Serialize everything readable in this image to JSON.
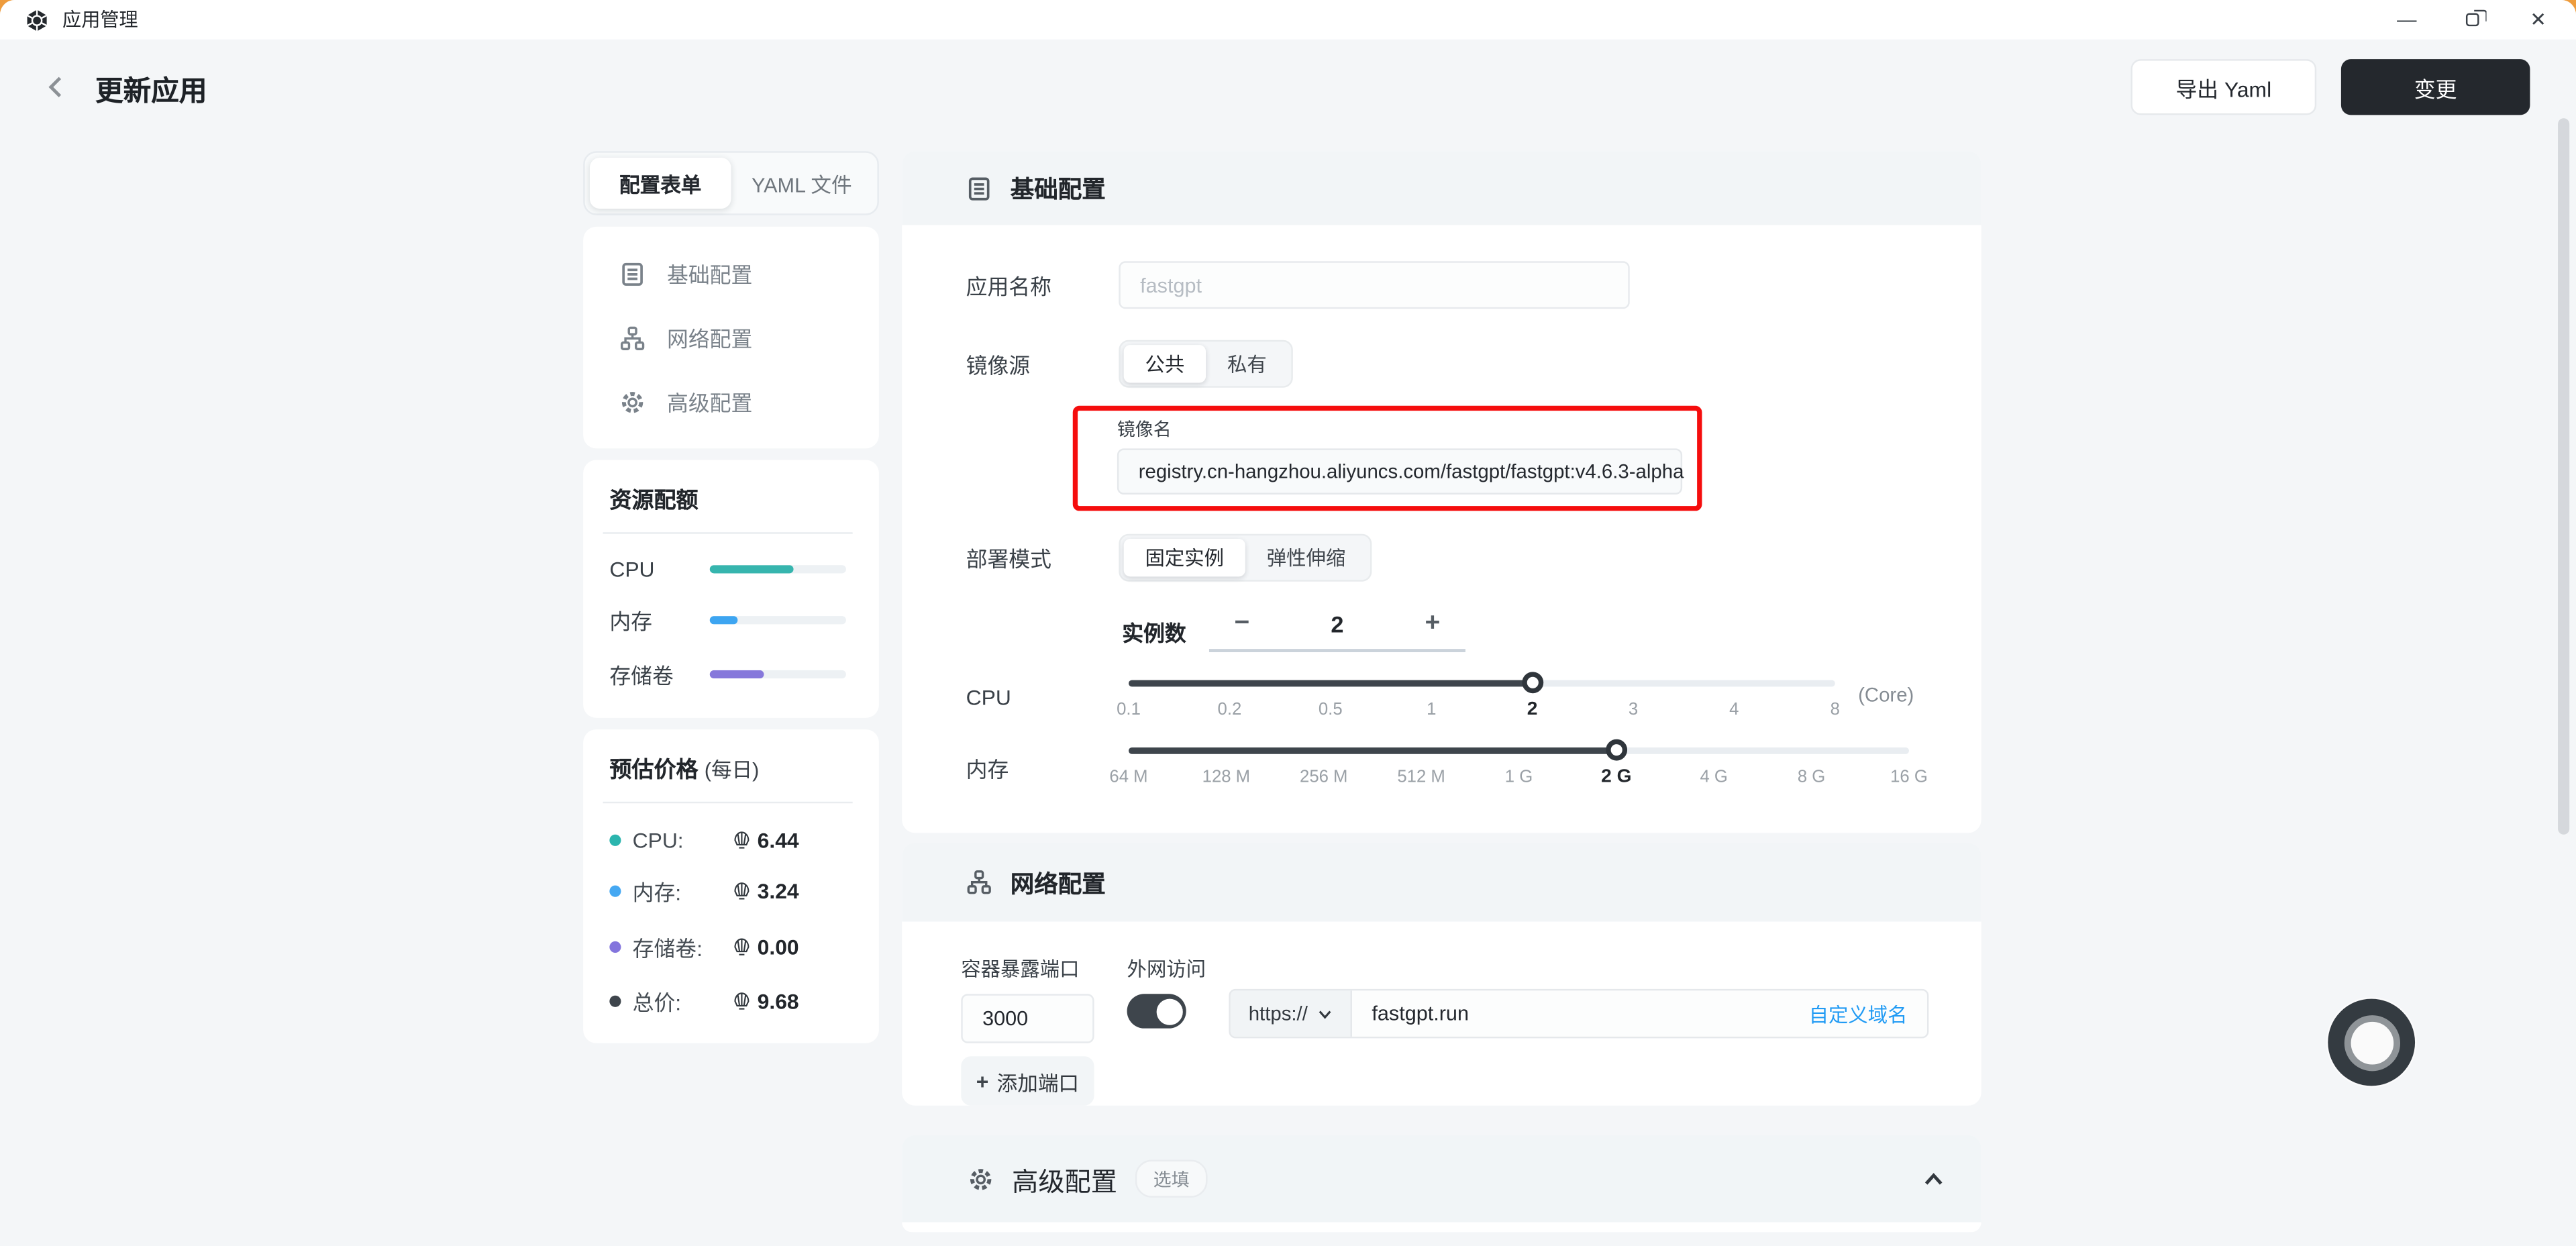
{
  "titlebar": {
    "title": "应用管理",
    "minimize_glyph": "—",
    "close_glyph": "✕"
  },
  "header": {
    "title": "更新应用",
    "export_yaml": "导出 Yaml",
    "apply": "变更"
  },
  "sidebar": {
    "tabs": [
      {
        "label": "配置表单"
      },
      {
        "label": "YAML 文件"
      }
    ],
    "nav": [
      {
        "label": "基础配置"
      },
      {
        "label": "网络配置"
      },
      {
        "label": "高级配置"
      }
    ],
    "quota": {
      "title": "资源配额",
      "items": [
        {
          "label": "CPU",
          "percent": 61,
          "color": "#36B5AE"
        },
        {
          "label": "内存",
          "percent": 20,
          "color": "#3DA5F1"
        },
        {
          "label": "存储卷",
          "percent": 40,
          "color": "#8678DB"
        }
      ]
    },
    "price": {
      "title": "预估价格",
      "subtitle": "(每日)",
      "items": [
        {
          "label": "CPU:",
          "value": "6.44",
          "color": "#2BB5AE"
        },
        {
          "label": "内存:",
          "value": "3.24",
          "color": "#45A8F2"
        },
        {
          "label": "存储卷:",
          "value": "0.00",
          "color": "#8374DD"
        },
        {
          "label": "总价:",
          "value": "9.68",
          "color": "#3E454C"
        }
      ]
    }
  },
  "basic": {
    "title": "基础配置",
    "app_name_label": "应用名称",
    "app_name_placeholder": "fastgpt",
    "image_source_label": "镜像源",
    "image_tabs": [
      "公共",
      "私有"
    ],
    "image_name_label": "镜像名",
    "image_name_value": "registry.cn-hangzhou.aliyuncs.com/fastgpt/fastgpt:v4.6.3-alpha",
    "deploy_mode_label": "部署模式",
    "deploy_tabs": [
      "固定实例",
      "弹性伸缩"
    ],
    "replicas_label": "实例数",
    "replicas_value": "2",
    "minus_glyph": "−",
    "plus_glyph": "+",
    "cpu": {
      "label": "CPU",
      "unit": "(Core)",
      "selected": "2",
      "ticks": [
        "0.1",
        "0.2",
        "0.5",
        "1",
        "2",
        "3",
        "4",
        "8"
      ]
    },
    "memory": {
      "label": "内存",
      "selected": "2 G",
      "ticks": [
        "64 M",
        "128 M",
        "256 M",
        "512 M",
        "1 G",
        "2 G",
        "4 G",
        "8 G",
        "16 G"
      ]
    }
  },
  "network": {
    "title": "网络配置",
    "port_label": "容器暴露端口",
    "port_value": "3000",
    "external_label": "外网访问",
    "protocol": "https://",
    "domain": "fastgpt.run",
    "custom_domain_link": "自定义域名",
    "add_port_label": "添加端口",
    "add_port_plus": "+"
  },
  "advanced": {
    "title": "高级配置",
    "badge": "选填"
  }
}
